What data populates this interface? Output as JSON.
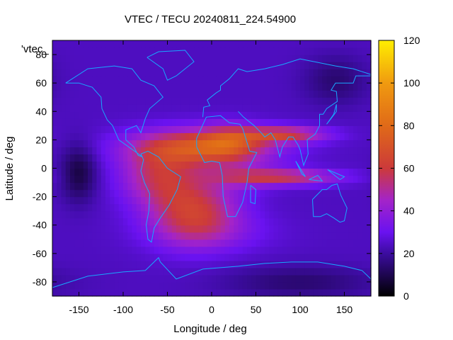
{
  "chart_data": {
    "type": "heatmap",
    "title": "VTEC / TECU 20240811_224.54900",
    "xlabel": "Longitude / deg",
    "ylabel": "Latitude / deg",
    "xlim": [
      -180,
      180
    ],
    "ylim": [
      -90,
      90
    ],
    "x_ticks": [
      -150,
      -100,
      -50,
      0,
      50,
      100,
      150
    ],
    "y_ticks": [
      80,
      60,
      40,
      20,
      0,
      -20,
      -40,
      -60,
      -80
    ],
    "colorbar": {
      "min": 0,
      "max": 120,
      "ticks": [
        120,
        100,
        80,
        60,
        40,
        20,
        0
      ],
      "stops": [
        {
          "v": 0,
          "color": "#000000"
        },
        {
          "v": 20,
          "color": "#3c0ca0"
        },
        {
          "v": 30,
          "color": "#6a12f0"
        },
        {
          "v": 45,
          "color": "#a424c8"
        },
        {
          "v": 60,
          "color": "#cc3a3a"
        },
        {
          "v": 80,
          "color": "#e06a18"
        },
        {
          "v": 100,
          "color": "#f09a10"
        },
        {
          "v": 120,
          "color": "#ffee00"
        }
      ]
    },
    "legend_label": "'vtec_",
    "background_value": 24,
    "features": [
      {
        "lon": -10,
        "lat": 15,
        "sx": 55,
        "sy": 9,
        "amp": 46
      },
      {
        "lon": 20,
        "lat": 20,
        "sx": 22,
        "sy": 8,
        "amp": 18
      },
      {
        "lon": -60,
        "lat": -5,
        "sx": 30,
        "sy": 14,
        "amp": 28
      },
      {
        "lon": -20,
        "lat": -30,
        "sx": 35,
        "sy": 16,
        "amp": 36
      },
      {
        "lon": 30,
        "lat": -5,
        "sx": 30,
        "sy": 8,
        "amp": 10
      },
      {
        "lon": 80,
        "lat": 24,
        "sx": 35,
        "sy": 4,
        "amp": 34
      },
      {
        "lon": 80,
        "lat": -6,
        "sx": 45,
        "sy": 4,
        "amp": 32
      },
      {
        "lon": 0,
        "lat": -45,
        "sx": 50,
        "sy": 10,
        "amp": 8
      },
      {
        "lon": -150,
        "lat": -3,
        "sx": 14,
        "sy": 14,
        "amp": -16
      },
      {
        "lon": 140,
        "lat": 62,
        "sx": 25,
        "sy": 12,
        "amp": -10
      },
      {
        "lon": 100,
        "lat": -80,
        "sx": 60,
        "sy": 8,
        "amp": -10
      }
    ]
  }
}
